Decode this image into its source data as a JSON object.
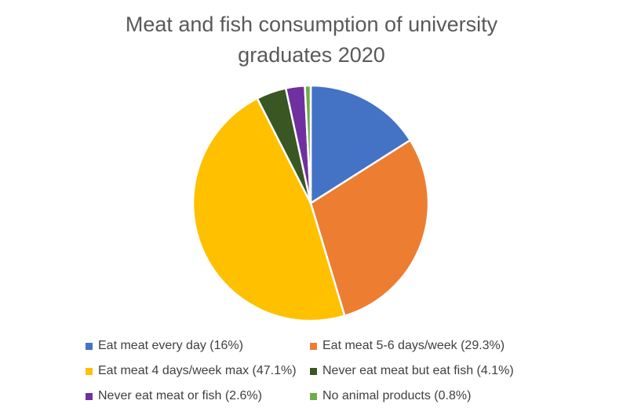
{
  "chart_data": {
    "type": "pie",
    "title": "Meat and fish consumption of university graduates 2020",
    "legend_position": "bottom",
    "legend_columns": 2,
    "start_angle_deg": 0,
    "direction": "clockwise",
    "title_color": "#595959",
    "legend_text_color": "#404040",
    "slice_gap_color": "#ffffff",
    "slices": [
      {
        "label": "Eat meat every day",
        "value": 16,
        "legend_text": "Eat meat every day (16%)",
        "color": "#4472C4"
      },
      {
        "label": "Eat meat 5-6 days/week",
        "value": 29.3,
        "legend_text": "Eat meat 5-6 days/week (29.3%)",
        "color": "#ED7D31"
      },
      {
        "label": "Eat meat 4 days/week max",
        "value": 47.1,
        "legend_text": "Eat meat 4 days/week max (47.1%)",
        "color": "#FFC000"
      },
      {
        "label": "Never eat meat but eat fish",
        "value": 4.1,
        "legend_text": "Never eat meat but eat fish (4.1%)",
        "color": "#385723"
      },
      {
        "label": "Never eat meat or fish",
        "value": 2.6,
        "legend_text": "Never eat meat or fish (2.6%)",
        "color": "#7030A0"
      },
      {
        "label": "No animal products",
        "value": 0.8,
        "legend_text": "No animal products (0.8%)",
        "color": "#70AD47"
      }
    ]
  }
}
